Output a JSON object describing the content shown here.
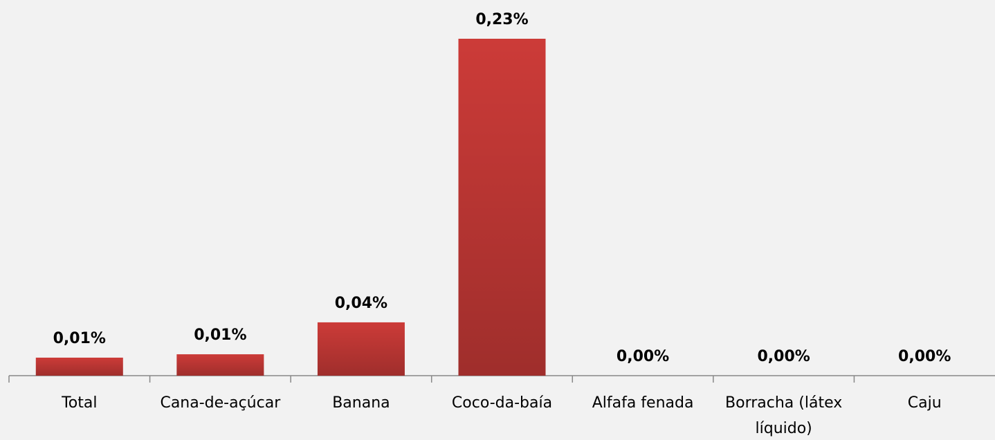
{
  "chart_data": {
    "type": "bar",
    "categories": [
      "Total",
      "Cana-de-açúcar",
      "Banana",
      "Coco-da-baía",
      "Alfafa fenada",
      "Borracha (látex líquido)",
      "Caju"
    ],
    "values": [
      0.0123,
      0.0146,
      0.0364,
      0.23,
      0,
      0,
      0
    ],
    "value_labels": [
      "0,01%",
      "0,01%",
      "0,04%",
      "0,23%",
      "0,00%",
      "0,00%",
      "0,00%"
    ],
    "color": "#cc3b38"
  }
}
